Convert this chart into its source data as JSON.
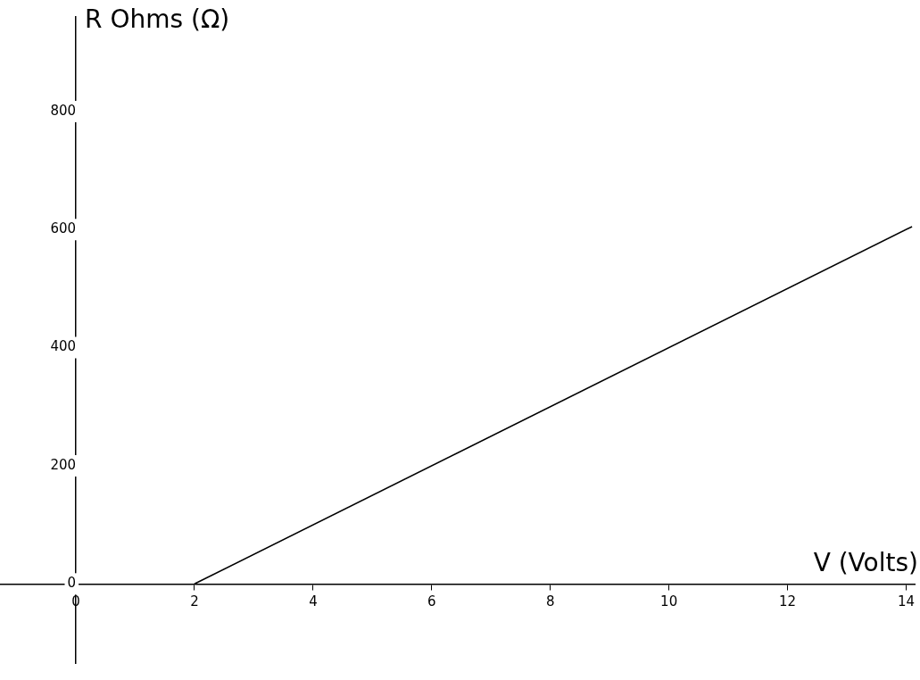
{
  "chart_data": {
    "type": "line",
    "xlabel": "V (Volts)",
    "ylabel": "R Ohms (Ω)",
    "x": [
      2,
      14.1
    ],
    "series": [
      {
        "color": "#000000",
        "values": [
          0,
          605
        ]
      }
    ],
    "xlim": [
      -1.28,
      14.15
    ],
    "ylim": [
      -134,
      960
    ],
    "xticks": [
      0,
      2,
      4,
      6,
      8,
      10,
      12,
      14
    ],
    "yticks": [
      0,
      200,
      400,
      600,
      800
    ],
    "grid": false,
    "legend": false,
    "marker": "none",
    "line_style": "solid"
  }
}
